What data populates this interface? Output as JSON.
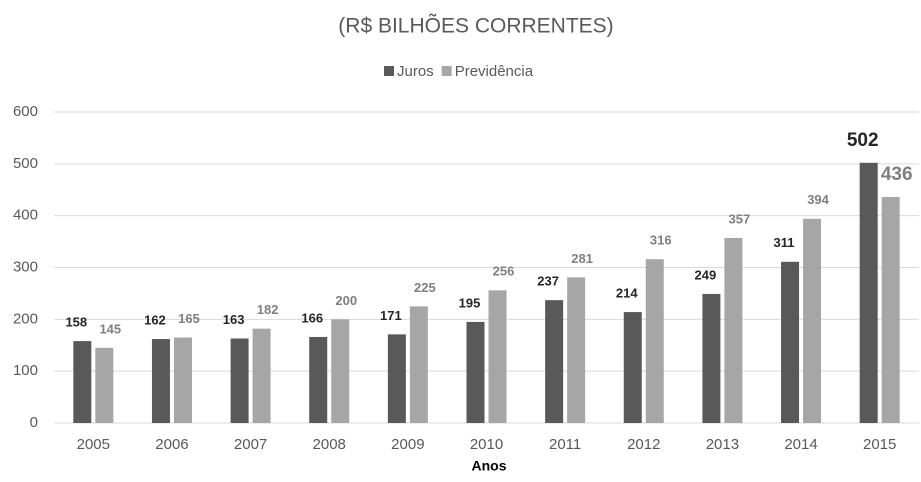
{
  "chart_data": {
    "type": "bar",
    "title": "(R$ BILHÕES CORRENTES)",
    "x_label": "Anos",
    "categories": [
      "2005",
      "2006",
      "2007",
      "2008",
      "2009",
      "2010",
      "2011",
      "2012",
      "2013",
      "2014",
      "2015"
    ],
    "series": [
      {
        "name": "Juros",
        "color": "#595959",
        "values": [
          158,
          162,
          163,
          166,
          171,
          195,
          237,
          214,
          249,
          311,
          502
        ]
      },
      {
        "name": "Previdência",
        "color": "#a6a6a6",
        "values": [
          145,
          165,
          182,
          200,
          225,
          256,
          281,
          316,
          357,
          394,
          436
        ]
      }
    ],
    "ylim": [
      0,
      600
    ],
    "yticks": [
      0,
      100,
      200,
      300,
      400,
      500,
      600
    ],
    "grid": true,
    "legend": "top"
  }
}
